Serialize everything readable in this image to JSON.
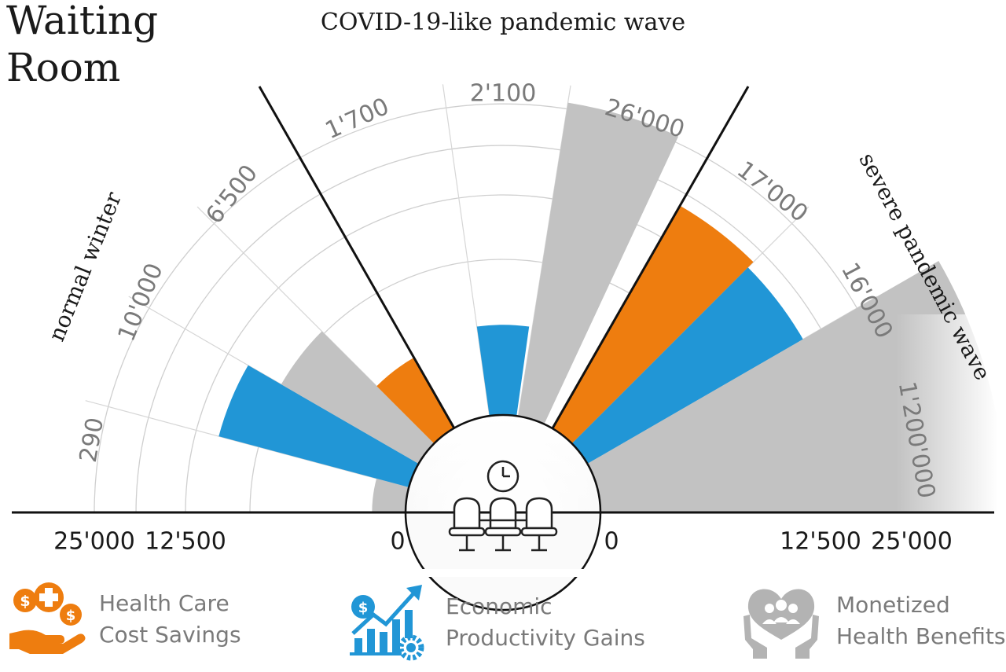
{
  "title": "Waiting\nRoom",
  "chart_data": {
    "type": "polar-bar",
    "scale": "sqrt",
    "scenarios": [
      {
        "name": "normal winter",
        "sectors": [
          {
            "category": "Monetized Health Benefits",
            "label": "290",
            "value": 290
          },
          {
            "category": "Economic Productivity Gains",
            "label": "10'000",
            "value": 10000
          },
          {
            "category": "Monetized Health Benefits",
            "label": "6'500",
            "value": 6500
          },
          {
            "category": "Health Care Cost Savings",
            "label": "1'700",
            "value": 1700
          }
        ]
      },
      {
        "name": "COVID-19-like pandemic wave",
        "sectors": [
          {
            "category": "Economic Productivity Gains",
            "label": "2'100",
            "value": 2100
          },
          {
            "category": "Monetized Health Benefits",
            "label": "26'000",
            "value": 26000
          }
        ]
      },
      {
        "name": "severe pandemic wave",
        "sectors": [
          {
            "category": "Health Care Cost Savings",
            "label": "17'000",
            "value": 17000
          },
          {
            "category": "Economic Productivity Gains",
            "label": "16'000",
            "value": 16000
          },
          {
            "category": "Monetized Health Benefits",
            "label": "1'200'000",
            "value": 1200000
          }
        ]
      }
    ],
    "axis_ticks_left": [
      "25'000",
      "12'500",
      "0"
    ],
    "axis_ticks_right": [
      "0",
      "12'500",
      "25'000"
    ],
    "axis_tick_values": [
      0,
      12500,
      25000
    ],
    "grid": true,
    "colors": {
      "Health Care Cost Savings": "#ee7d0f",
      "Economic Productivity Gains": "#2196d6",
      "Monetized Health Benefits": "#c2c2c2"
    }
  },
  "legend": [
    {
      "label": "Health Care\nCost Savings",
      "icon": "health-care-cost-savings-icon",
      "color": "#ee7d0f"
    },
    {
      "label": "Economic\nProductivity Gains",
      "icon": "economic-productivity-gains-icon",
      "color": "#2196d6"
    },
    {
      "label": "Monetized\nHealth Benefits",
      "icon": "monetized-health-benefits-icon",
      "color": "#b3b3b3"
    }
  ],
  "center_icon": "waiting-room-seats-with-clock-icon"
}
